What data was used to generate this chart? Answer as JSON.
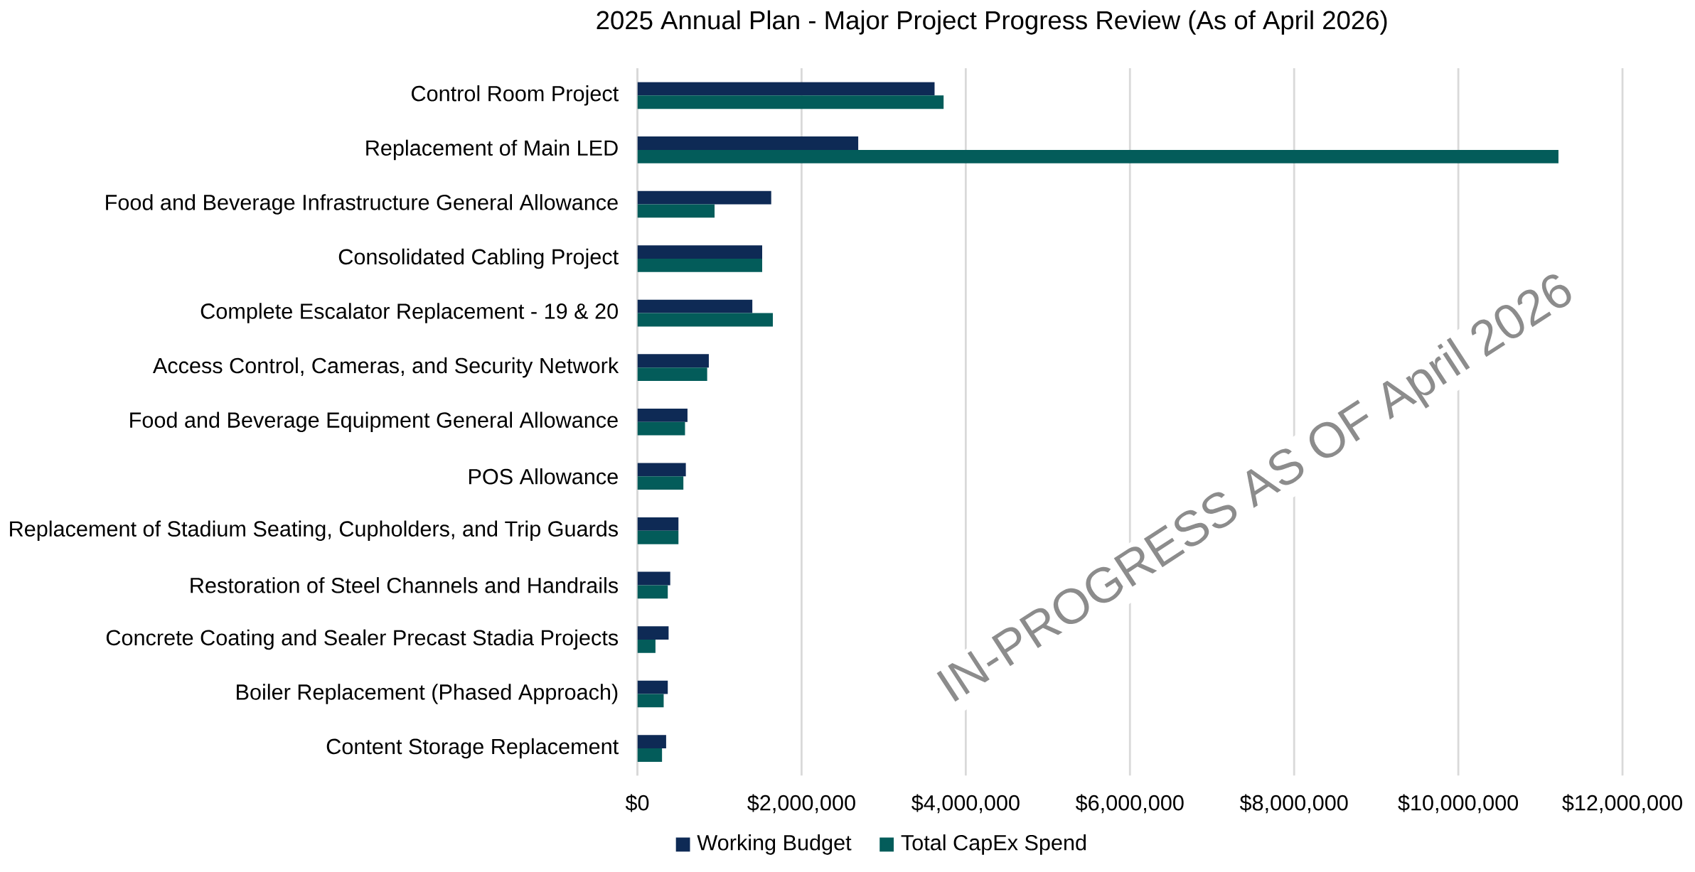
{
  "chart_data": {
    "type": "bar",
    "orientation": "horizontal",
    "title": "2025 Annual Plan  - Major Project Progress Review (As of April 2026)",
    "categories": [
      "Control Room Project",
      "Replacement of Main LED",
      "Food and Beverage Infrastructure General Allowance",
      "Consolidated Cabling Project",
      "Complete Escalator Replacement - 19 & 20",
      "Access Control, Cameras, and Security Network",
      "Food and Beverage Equipment General Allowance",
      "POS Allowance",
      "Replacement of Stadium Seating, Cupholders, and Trip Guards",
      "Restoration of Steel Channels and Handrails",
      "Concrete Coating and Sealer Precast Stadia Projects",
      "Boiler Replacement (Phased Approach)",
      "Content Storage Replacement"
    ],
    "series": [
      {
        "name": "Working Budget",
        "color": "#0e2a55",
        "values": [
          3620000,
          2690000,
          1630000,
          1520000,
          1400000,
          870000,
          610000,
          590000,
          500000,
          400000,
          380000,
          370000,
          350000
        ]
      },
      {
        "name": "Total CapEx Spend",
        "color": "#035c5a",
        "values": [
          3730000,
          11220000,
          940000,
          1520000,
          1650000,
          850000,
          580000,
          560000,
          500000,
          370000,
          220000,
          320000,
          300000
        ]
      }
    ],
    "xlim": [
      0,
      12000000
    ],
    "xticks": [
      {
        "value": 0,
        "label": "$0"
      },
      {
        "value": 2000000,
        "label": "$2,000,000"
      },
      {
        "value": 4000000,
        "label": "$4,000,000"
      },
      {
        "value": 6000000,
        "label": "$6,000,000"
      },
      {
        "value": 8000000,
        "label": "$8,000,000"
      },
      {
        "value": 10000000,
        "label": "$10,000,000"
      },
      {
        "value": 12000000,
        "label": "$12,000,000"
      }
    ],
    "grid": "x",
    "legend": "bottom",
    "annotations": [
      "IN-PROGRESS AS OF April 2026"
    ]
  }
}
